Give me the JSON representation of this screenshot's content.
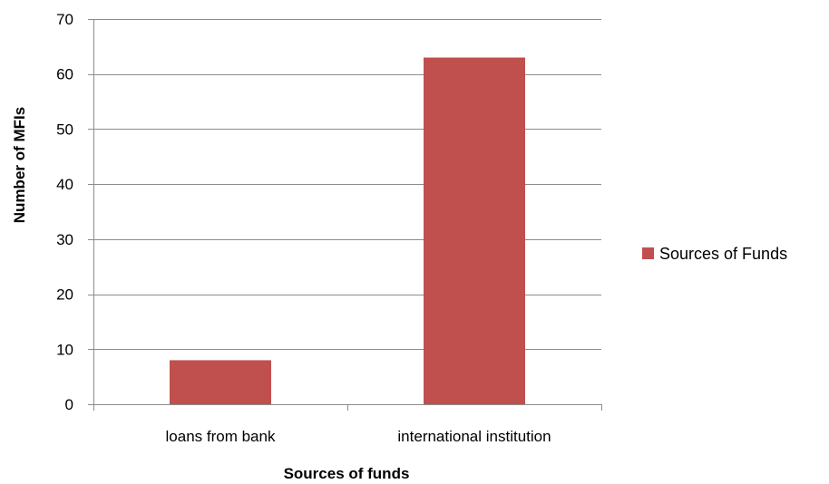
{
  "chart_data": {
    "type": "bar",
    "categories": [
      "loans from bank",
      "international institution"
    ],
    "series": [
      {
        "name": "Sources of Funds",
        "values": [
          8,
          63
        ],
        "color": "#c0504d"
      }
    ],
    "xlabel": "Sources of funds",
    "ylabel": "Number of MFIs",
    "ylim": [
      0,
      70
    ],
    "yticks": [
      0,
      10,
      20,
      30,
      40,
      50,
      60,
      70
    ],
    "grid": true,
    "legend_position": "right"
  }
}
